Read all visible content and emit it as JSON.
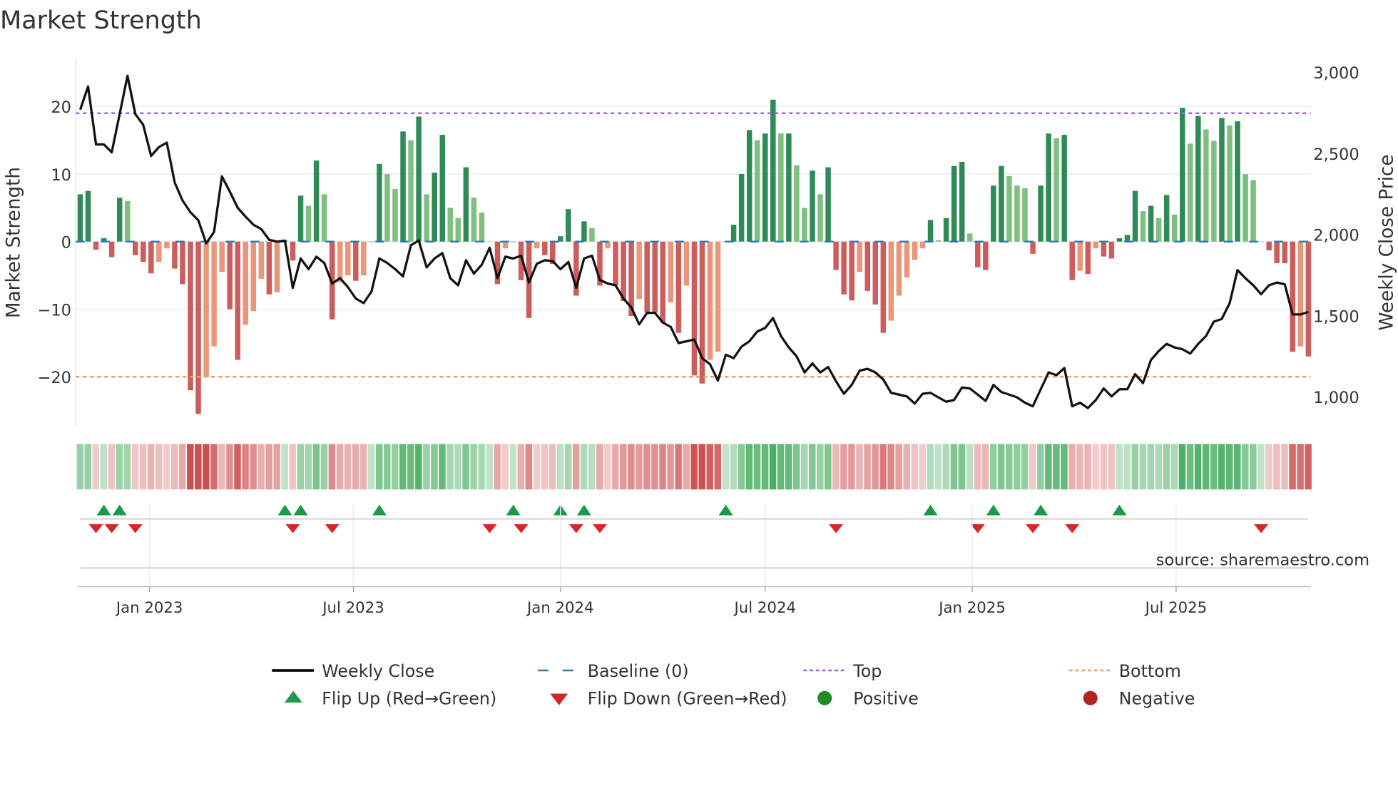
{
  "chart_data": {
    "type": "bar",
    "title": "Market Strength",
    "ylabel": "Market Strength",
    "y2label": "Weekly Close Price",
    "ylim": [
      -28,
      26
    ],
    "y2lim": [
      820,
      3100
    ],
    "yticks": [
      20,
      10,
      0,
      -10,
      -20
    ],
    "yticklabels": [
      "20",
      "10",
      "0",
      "−10",
      "−20"
    ],
    "y2ticks": [
      3000,
      2500,
      2000,
      1500,
      1000
    ],
    "y2ticklabels": [
      "3,000",
      "2,500",
      "2,000",
      "1,500",
      "1,000"
    ],
    "grid": true,
    "top_level": 19,
    "bottom_level": -20,
    "baseline": 0,
    "xticks": [
      {
        "label": "Jan 2023",
        "week_index": 8.8
      },
      {
        "label": "Jul 2023",
        "week_index": 34.7
      },
      {
        "label": "Jan 2024",
        "week_index": 61
      },
      {
        "label": "Jul 2024",
        "week_index": 87
      },
      {
        "label": "Jan 2025",
        "week_index": 113.3
      },
      {
        "label": "Jul 2025",
        "week_index": 139.2
      }
    ],
    "strength": [
      7,
      7.5,
      -1.2,
      0.5,
      -2.3,
      6.5,
      6,
      -2,
      -3,
      -4.7,
      -3,
      -1,
      -4,
      -6.3,
      -22,
      -25.5,
      -20,
      -15.5,
      -4.5,
      -10,
      -17.5,
      -12.3,
      -10.3,
      -5.5,
      -7.8,
      -7.5,
      0.2,
      -2.8,
      6.8,
      5.3,
      12,
      7,
      -11.5,
      -6,
      -5,
      -5.8,
      -5,
      0,
      11.5,
      10,
      7.8,
      16.3,
      15,
      18.5,
      7,
      10.2,
      15.8,
      5,
      3.5,
      11,
      6.5,
      4.3,
      0,
      -6.3,
      -1,
      0,
      -5.7,
      -11.3,
      -1,
      -2,
      -3.3,
      0.8,
      4.8,
      -8,
      3,
      2,
      -6.5,
      -1,
      -6.5,
      -8.8,
      -11,
      -8.5,
      -10.5,
      -10.5,
      -12,
      -9,
      -13.5,
      -6.5,
      -19.8,
      -21,
      -17.5,
      -16.3,
      0,
      2.5,
      10,
      16.5,
      15,
      16,
      21,
      16,
      16,
      11.3,
      5,
      10.5,
      7,
      11,
      -4.2,
      -7.8,
      -8.7,
      -4.5,
      -7.3,
      -9.3,
      -13.5,
      -11.7,
      -8,
      -5.3,
      -2.7,
      -1,
      3.2,
      0.2,
      3.5,
      11.2,
      11.8,
      1.2,
      -3.8,
      -4.2,
      8.3,
      11.2,
      9.7,
      8.3,
      7.9,
      -1.8,
      8.3,
      16,
      15.3,
      15.8,
      -5.7,
      -4.3,
      -4.8,
      -1,
      -2.2,
      -2.5,
      0.5,
      1,
      7.5,
      4.5,
      5.3,
      3.5,
      6.9,
      4,
      19.8,
      14.5,
      18.6,
      16.6,
      14.9,
      18.3,
      17.2,
      17.8,
      10,
      9.1,
      0,
      -1.3,
      -3.2,
      -3.2,
      -16.3,
      -15.5,
      -17
    ],
    "weekly_close": [
      2769,
      2912,
      2555,
      2555,
      2506,
      2742,
      2978,
      2742,
      2676,
      2484,
      2539,
      2566,
      2319,
      2209,
      2137,
      2088,
      1945,
      2016,
      2358,
      2264,
      2165,
      2110,
      2060,
      2033,
      1967,
      1956,
      1962,
      1671,
      1852,
      1786,
      1863,
      1824,
      1698,
      1731,
      1676,
      1605,
      1577,
      1649,
      1852,
      1824,
      1786,
      1742,
      1934,
      1962,
      1797,
      1852,
      1885,
      1731,
      1687,
      1841,
      1759,
      1813,
      1918,
      1731,
      1863,
      1852,
      1869,
      1704,
      1819,
      1841,
      1836,
      1786,
      1830,
      1671,
      1852,
      1869,
      1720,
      1698,
      1687,
      1605,
      1550,
      1446,
      1517,
      1517,
      1457,
      1430,
      1331,
      1342,
      1353,
      1238,
      1200,
      1100,
      1259,
      1238,
      1309,
      1342,
      1402,
      1424,
      1485,
      1375,
      1304,
      1249,
      1150,
      1205,
      1150,
      1183,
      1095,
      1018,
      1073,
      1161,
      1172,
      1150,
      1106,
      1024,
      1013,
      1002,
      958,
      1018,
      1024,
      996,
      969,
      980,
      1057,
      1051,
      1013,
      974,
      1073,
      1029,
      1013,
      996,
      963,
      941,
      1046,
      1150,
      1133,
      1177,
      941,
      963,
      930,
      980,
      1051,
      1002,
      1046,
      1046,
      1139,
      1084,
      1227,
      1282,
      1326,
      1304,
      1293,
      1266,
      1326,
      1375,
      1463,
      1479,
      1577,
      1781,
      1731,
      1687,
      1632,
      1687,
      1704,
      1693,
      1507,
      1507,
      1523
    ],
    "flip_up_weeks": [
      3,
      5,
      26,
      28,
      38,
      55,
      61,
      64,
      82,
      108,
      116,
      122,
      132
    ],
    "flip_down_weeks": [
      2,
      4,
      7,
      27,
      32,
      52,
      56,
      63,
      66,
      96,
      114,
      121,
      126,
      150
    ],
    "legend": [
      {
        "label": "Weekly Close",
        "kind": "line",
        "color": "#111111"
      },
      {
        "label": "Baseline (0)",
        "kind": "dash",
        "color": "#2f7bb0"
      },
      {
        "label": "Top",
        "kind": "dot",
        "color": "#a064e0"
      },
      {
        "label": "Bottom",
        "kind": "dot",
        "color": "#f0a060"
      },
      {
        "label": "Flip Up (Red→Green)",
        "kind": "tri-up",
        "color": "#1a9a4a"
      },
      {
        "label": "Flip Down (Green→Red)",
        "kind": "tri-down",
        "color": "#d62728"
      },
      {
        "label": "Positive",
        "kind": "circle",
        "color": "#228b22"
      },
      {
        "label": "Negative",
        "kind": "circle",
        "color": "#b22222"
      }
    ],
    "legend_placement": "bottom",
    "source": "source: sharemaestro.com"
  },
  "colors": {
    "pos_strong": "#2e8b57",
    "pos_weak": "#7fbf7f",
    "neg_strong": "#cd5c5c",
    "neg_weak": "#e9967a",
    "line": "#111111",
    "top": "#a064e0",
    "bottom": "#f0a060",
    "baseline": "#2f7bb0"
  }
}
